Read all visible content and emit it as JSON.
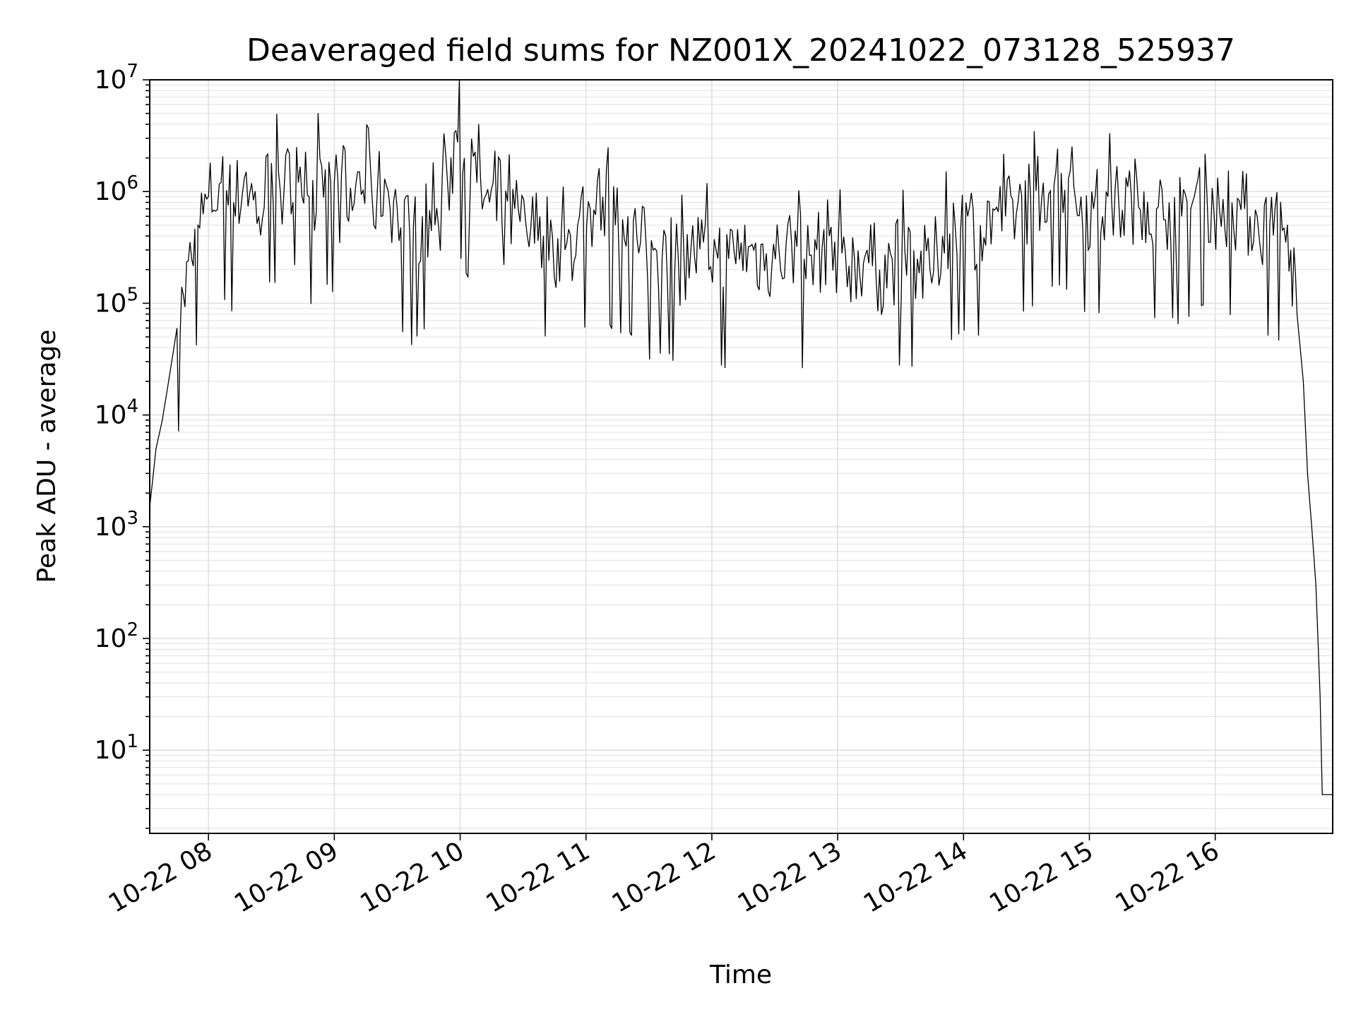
{
  "chart_data": {
    "type": "line",
    "title": "Deaveraged field sums for NZ001X_20241022_073128_525937",
    "xlabel": "Time",
    "ylabel": "Peak ADU - average",
    "yscale": "log",
    "ylim": [
      1.8,
      10000000
    ],
    "xlim": [
      "2024-10-22 07:32",
      "2024-10-22 16:56"
    ],
    "grid": "major and minor",
    "x_ticks": [
      "10-22 08",
      "10-22 09",
      "10-22 10",
      "10-22 11",
      "10-22 12",
      "10-22 13",
      "10-22 14",
      "10-22 15",
      "10-22 16"
    ],
    "y_ticks": [
      {
        "value": 10,
        "base": "10",
        "exp": "1"
      },
      {
        "value": 100,
        "base": "10",
        "exp": "2"
      },
      {
        "value": 1000,
        "base": "10",
        "exp": "3"
      },
      {
        "value": 10000,
        "base": "10",
        "exp": "4"
      },
      {
        "value": 100000,
        "base": "10",
        "exp": "5"
      },
      {
        "value": 1000000,
        "base": "10",
        "exp": "6"
      },
      {
        "value": 10000000,
        "base": "10",
        "exp": "7"
      }
    ],
    "color": "#000000",
    "series": [
      {
        "name": "",
        "x": [
          "2024-10-22 07:32",
          "2024-10-22 07:35",
          "2024-10-22 07:38",
          "2024-10-22 07:41",
          "2024-10-22 07:45",
          "2024-10-22 07:48",
          "2024-10-22 07:52",
          "2024-10-22 07:55",
          "2024-10-22 08:00",
          "2024-10-22 08:06",
          "2024-10-22 08:12",
          "2024-10-22 08:18",
          "2024-10-22 08:24",
          "2024-10-22 08:30",
          "2024-10-22 08:36",
          "2024-10-22 08:42",
          "2024-10-22 08:48",
          "2024-10-22 08:54",
          "2024-10-22 09:00",
          "2024-10-22 09:06",
          "2024-10-22 09:12",
          "2024-10-22 09:18",
          "2024-10-22 09:24",
          "2024-10-22 09:30",
          "2024-10-22 09:36",
          "2024-10-22 09:42",
          "2024-10-22 09:48",
          "2024-10-22 09:54",
          "2024-10-22 09:58",
          "2024-10-22 10:02",
          "2024-10-22 10:08",
          "2024-10-22 10:14",
          "2024-10-22 10:20",
          "2024-10-22 10:26",
          "2024-10-22 10:32",
          "2024-10-22 10:38",
          "2024-10-22 10:44",
          "2024-10-22 10:50",
          "2024-10-22 10:56",
          "2024-10-22 11:02",
          "2024-10-22 11:08",
          "2024-10-22 11:14",
          "2024-10-22 11:20",
          "2024-10-22 11:26",
          "2024-10-22 11:32",
          "2024-10-22 11:38",
          "2024-10-22 11:44",
          "2024-10-22 11:50",
          "2024-10-22 11:56",
          "2024-10-22 12:02",
          "2024-10-22 12:08",
          "2024-10-22 12:14",
          "2024-10-22 12:20",
          "2024-10-22 12:26",
          "2024-10-22 12:32",
          "2024-10-22 12:38",
          "2024-10-22 12:44",
          "2024-10-22 12:50",
          "2024-10-22 12:56",
          "2024-10-22 13:02",
          "2024-10-22 13:08",
          "2024-10-22 13:14",
          "2024-10-22 13:20",
          "2024-10-22 13:26",
          "2024-10-22 13:32",
          "2024-10-22 13:38",
          "2024-10-22 13:44",
          "2024-10-22 13:50",
          "2024-10-22 13:56",
          "2024-10-22 14:02",
          "2024-10-22 14:08",
          "2024-10-22 14:14",
          "2024-10-22 14:20",
          "2024-10-22 14:26",
          "2024-10-22 14:32",
          "2024-10-22 14:38",
          "2024-10-22 14:44",
          "2024-10-22 14:50",
          "2024-10-22 14:56",
          "2024-10-22 15:02",
          "2024-10-22 15:08",
          "2024-10-22 15:14",
          "2024-10-22 15:20",
          "2024-10-22 15:26",
          "2024-10-22 15:32",
          "2024-10-22 15:38",
          "2024-10-22 15:44",
          "2024-10-22 15:50",
          "2024-10-22 15:56",
          "2024-10-22 16:02",
          "2024-10-22 16:08",
          "2024-10-22 16:14",
          "2024-10-22 16:20",
          "2024-10-22 16:26",
          "2024-10-22 16:32",
          "2024-10-22 16:36",
          "2024-10-22 16:39",
          "2024-10-22 16:42",
          "2024-10-22 16:44",
          "2024-10-22 16:46",
          "2024-10-22 16:48",
          "2024-10-22 16:50",
          "2024-10-22 16:51",
          "2024-10-22 16:53",
          "2024-10-22 16:56"
        ],
        "y": [
          1500,
          5000,
          9000,
          20000,
          60000,
          120000,
          250000,
          500000,
          900000,
          1200000,
          800000,
          1500000,
          600000,
          1800000,
          1000000,
          2500000,
          900000,
          1700000,
          1200000,
          600000,
          1500000,
          900000,
          1300000,
          700000,
          400000,
          600000,
          500000,
          1200000,
          3500000,
          2000000,
          1200000,
          800000,
          500000,
          700000,
          400000,
          600000,
          400000,
          300000,
          500000,
          700000,
          900000,
          500000,
          600000,
          350000,
          300000,
          400000,
          250000,
          300000,
          350000,
          300000,
          250000,
          350000,
          300000,
          280000,
          300000,
          350000,
          250000,
          300000,
          400000,
          280000,
          250000,
          300000,
          200000,
          250000,
          300000,
          250000,
          200000,
          400000,
          500000,
          600000,
          500000,
          700000,
          600000,
          800000,
          900000,
          1200000,
          1500000,
          1300000,
          900000,
          700000,
          1000000,
          800000,
          900000,
          1000000,
          700000,
          800000,
          600000,
          900000,
          1000000,
          700000,
          800000,
          700000,
          600000,
          500000,
          450000,
          300000,
          80000,
          20000,
          3000,
          1000,
          300,
          30,
          4,
          4,
          4
        ]
      }
    ]
  }
}
